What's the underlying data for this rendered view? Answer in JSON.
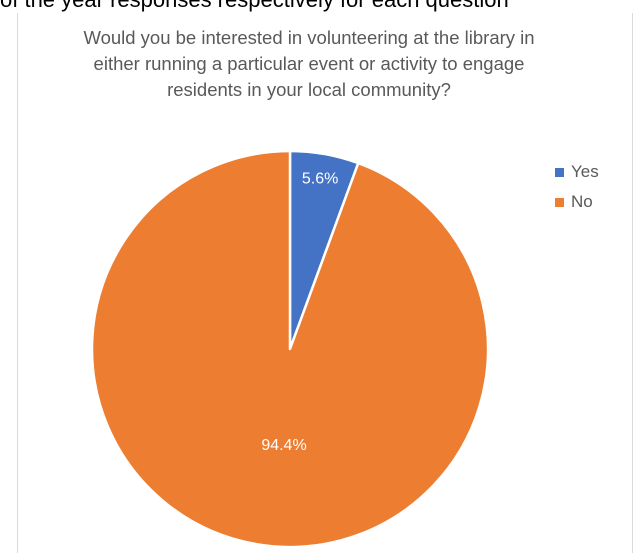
{
  "page": {
    "top_text": "of the year responses respectively for each question"
  },
  "chart_data": {
    "type": "pie",
    "title": "Would you be interested in volunteering at the library in either running a particular event or activity to engage residents in your local community?",
    "categories": [
      "Yes",
      "No"
    ],
    "values": [
      5.6,
      94.4
    ],
    "labels": [
      "5.6%",
      "94.4%"
    ],
    "colors": [
      "#4472C4",
      "#ED7D31"
    ],
    "legend_position": "right"
  }
}
